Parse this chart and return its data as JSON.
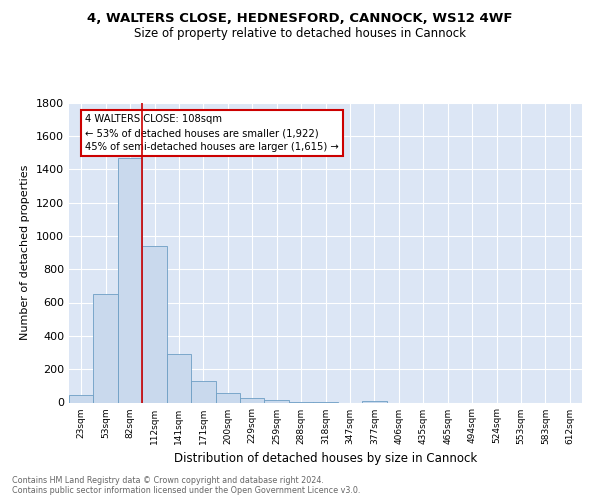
{
  "title1": "4, WALTERS CLOSE, HEDNESFORD, CANNOCK, WS12 4WF",
  "title2": "Size of property relative to detached houses in Cannock",
  "xlabel": "Distribution of detached houses by size in Cannock",
  "ylabel": "Number of detached properties",
  "footnote": "Contains HM Land Registry data © Crown copyright and database right 2024.\nContains public sector information licensed under the Open Government Licence v3.0.",
  "bin_labels": [
    "23sqm",
    "53sqm",
    "82sqm",
    "112sqm",
    "141sqm",
    "171sqm",
    "200sqm",
    "229sqm",
    "259sqm",
    "288sqm",
    "318sqm",
    "347sqm",
    "377sqm",
    "406sqm",
    "435sqm",
    "465sqm",
    "494sqm",
    "524sqm",
    "553sqm",
    "583sqm",
    "612sqm"
  ],
  "bar_values": [
    45,
    650,
    1470,
    940,
    290,
    130,
    60,
    25,
    15,
    5,
    2,
    0,
    12,
    0,
    0,
    0,
    0,
    0,
    0,
    0,
    0
  ],
  "bar_color": "#c9d9ed",
  "bar_edge_color": "#6d9ec4",
  "vline_color": "#cc0000",
  "annotation_text": "4 WALTERS CLOSE: 108sqm\n← 53% of detached houses are smaller (1,922)\n45% of semi-detached houses are larger (1,615) →",
  "ylim": [
    0,
    1800
  ],
  "yticks": [
    0,
    200,
    400,
    600,
    800,
    1000,
    1200,
    1400,
    1600,
    1800
  ],
  "plot_background": "#dce6f5",
  "grid_color": "#ffffff",
  "fig_background": "#ffffff"
}
